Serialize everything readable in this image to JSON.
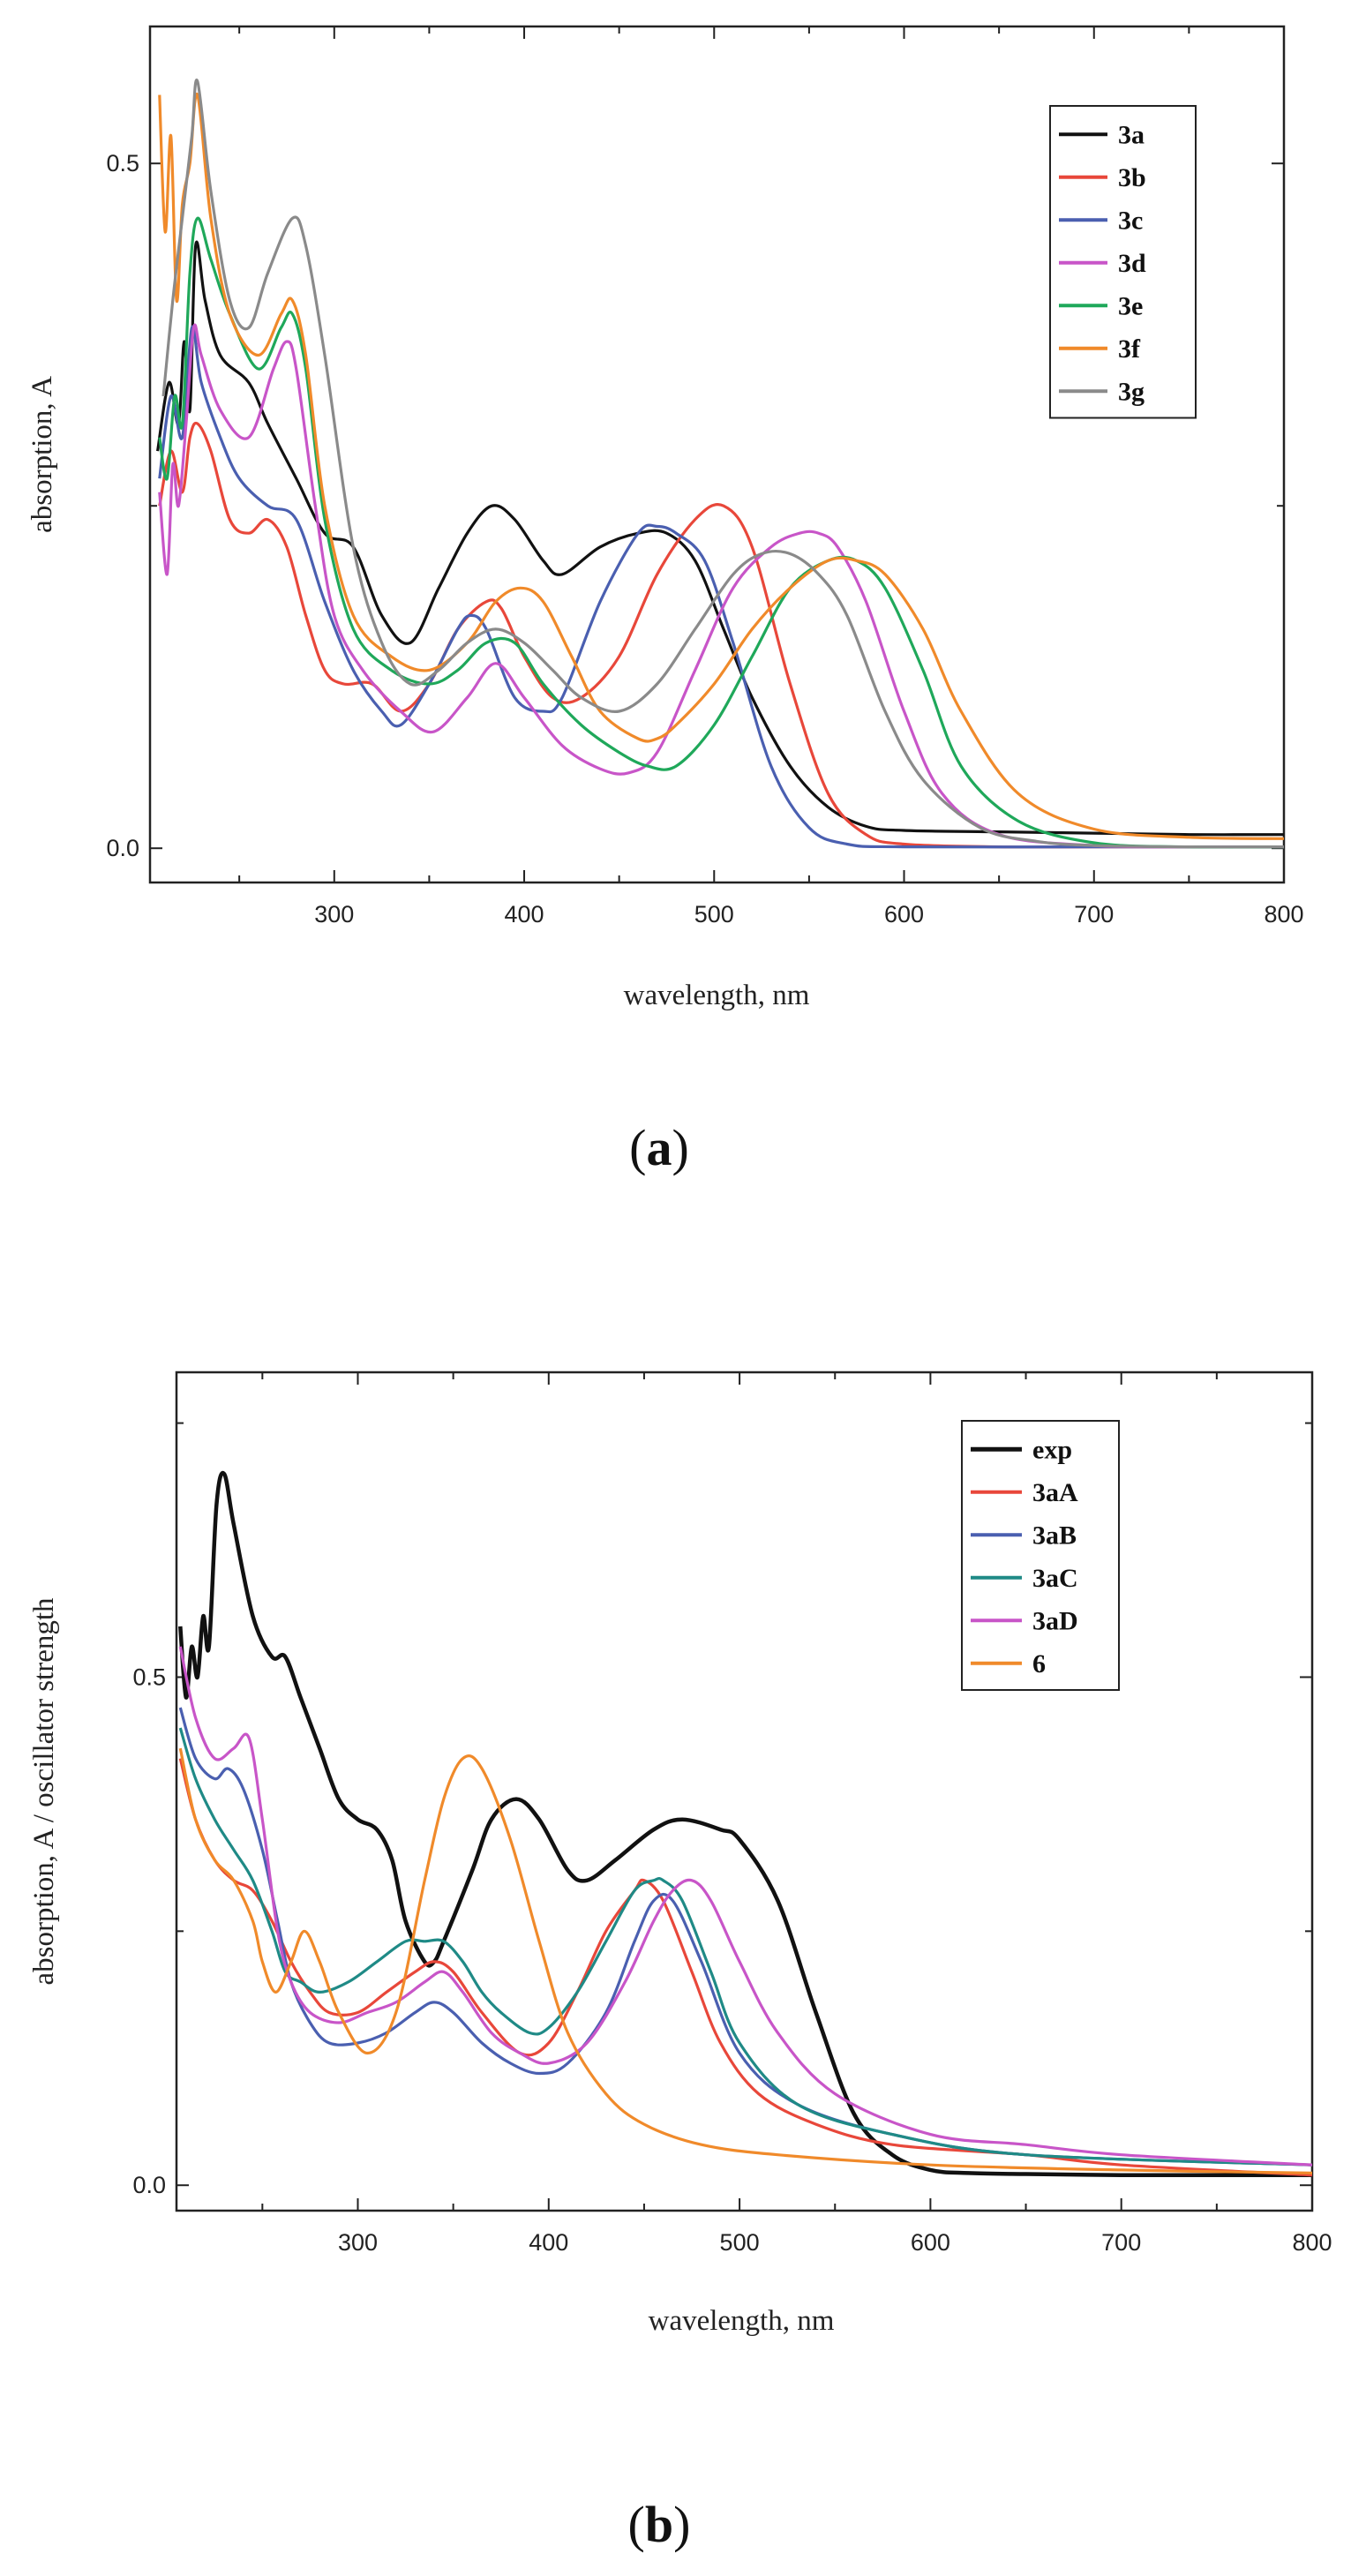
{
  "figure": {
    "panels": [
      {
        "caption_open": "(",
        "caption_letter": "a",
        "caption_close": ")"
      },
      {
        "caption_open": "(",
        "caption_letter": "b",
        "caption_close": ")"
      }
    ]
  },
  "chart_data": [
    {
      "type": "line",
      "title": "",
      "xlabel": "wavelength, nm",
      "ylabel": "absorption, A",
      "xlim": [
        203,
        800
      ],
      "ylim": [
        -0.025,
        0.6
      ],
      "xticks": [
        300,
        400,
        500,
        600,
        700,
        800
      ],
      "xtick_labels": [
        "300",
        "400",
        "500",
        "600",
        "700",
        "800"
      ],
      "yticks": [
        0.0,
        0.5
      ],
      "ytick_labels": [
        "0.0",
        "0.5"
      ],
      "legend_position": "top-right",
      "series": [
        {
          "name": "3a",
          "color": "#111111",
          "x": [
            207,
            213,
            218,
            221,
            224,
            227,
            232,
            240,
            255,
            265,
            280,
            295,
            310,
            325,
            340,
            355,
            370,
            383,
            395,
            410,
            420,
            440,
            460,
            475,
            490,
            505,
            520,
            540,
            560,
            580,
            600,
            650,
            700,
            750,
            800
          ],
          "y": [
            0.29,
            0.34,
            0.31,
            0.37,
            0.32,
            0.44,
            0.4,
            0.36,
            0.34,
            0.31,
            0.27,
            0.23,
            0.22,
            0.17,
            0.15,
            0.19,
            0.23,
            0.25,
            0.24,
            0.21,
            0.2,
            0.22,
            0.23,
            0.23,
            0.21,
            0.16,
            0.11,
            0.06,
            0.03,
            0.016,
            0.013,
            0.012,
            0.011,
            0.01,
            0.01
          ]
        },
        {
          "name": "3b",
          "color": "#e8473a",
          "x": [
            208,
            214,
            220,
            224,
            228,
            235,
            245,
            255,
            265,
            275,
            285,
            295,
            305,
            320,
            335,
            350,
            365,
            380,
            388,
            400,
            415,
            430,
            450,
            470,
            490,
            505,
            520,
            540,
            560,
            580,
            600,
            650,
            700,
            800
          ],
          "y": [
            0.25,
            0.29,
            0.26,
            0.3,
            0.31,
            0.29,
            0.24,
            0.23,
            0.24,
            0.22,
            0.17,
            0.13,
            0.12,
            0.12,
            0.1,
            0.12,
            0.16,
            0.18,
            0.175,
            0.14,
            0.11,
            0.11,
            0.14,
            0.2,
            0.24,
            0.25,
            0.22,
            0.12,
            0.04,
            0.01,
            0.003,
            0.001,
            0.001,
            0.001
          ]
        },
        {
          "name": "3c",
          "color": "#4a5fb0",
          "x": [
            208,
            214,
            220,
            225,
            230,
            240,
            250,
            265,
            280,
            295,
            310,
            325,
            335,
            350,
            365,
            372,
            380,
            395,
            410,
            420,
            440,
            460,
            470,
            480,
            495,
            510,
            530,
            550,
            570,
            600,
            700,
            800
          ],
          "y": [
            0.27,
            0.33,
            0.3,
            0.38,
            0.34,
            0.3,
            0.27,
            0.25,
            0.24,
            0.18,
            0.13,
            0.1,
            0.09,
            0.12,
            0.16,
            0.17,
            0.16,
            0.11,
            0.1,
            0.11,
            0.18,
            0.23,
            0.235,
            0.23,
            0.21,
            0.15,
            0.06,
            0.015,
            0.003,
            0.001,
            0.001,
            0.001
          ]
        },
        {
          "name": "3d",
          "color": "#c855c8",
          "x": [
            208,
            212,
            215,
            218,
            222,
            226,
            230,
            240,
            255,
            268,
            275,
            280,
            290,
            300,
            315,
            335,
            352,
            370,
            385,
            400,
            420,
            440,
            455,
            470,
            490,
            510,
            530,
            545,
            555,
            565,
            580,
            600,
            620,
            650,
            700,
            750,
            800
          ],
          "y": [
            0.26,
            0.2,
            0.28,
            0.25,
            0.31,
            0.38,
            0.36,
            0.32,
            0.3,
            0.35,
            0.37,
            0.35,
            0.25,
            0.17,
            0.13,
            0.1,
            0.085,
            0.11,
            0.135,
            0.11,
            0.075,
            0.058,
            0.055,
            0.07,
            0.13,
            0.19,
            0.22,
            0.23,
            0.23,
            0.22,
            0.18,
            0.1,
            0.04,
            0.01,
            0.002,
            0.001,
            0.001
          ]
        },
        {
          "name": "3e",
          "color": "#1fa85a",
          "x": [
            208,
            212,
            216,
            220,
            224,
            228,
            235,
            245,
            260,
            272,
            278,
            285,
            295,
            310,
            330,
            350,
            365,
            380,
            395,
            410,
            430,
            450,
            465,
            480,
            500,
            520,
            540,
            560,
            575,
            590,
            610,
            630,
            660,
            700,
            750,
            800
          ],
          "y": [
            0.3,
            0.27,
            0.33,
            0.31,
            0.42,
            0.46,
            0.43,
            0.39,
            0.35,
            0.38,
            0.39,
            0.35,
            0.24,
            0.16,
            0.13,
            0.12,
            0.13,
            0.15,
            0.15,
            0.12,
            0.09,
            0.07,
            0.06,
            0.06,
            0.09,
            0.14,
            0.19,
            0.21,
            0.21,
            0.19,
            0.13,
            0.06,
            0.02,
            0.004,
            0.001,
            0.001
          ]
        },
        {
          "name": "3f",
          "color": "#f08a2a",
          "x": [
            208,
            211,
            214,
            217,
            220,
            224,
            228,
            235,
            245,
            260,
            272,
            278,
            285,
            295,
            310,
            330,
            350,
            370,
            385,
            398,
            410,
            425,
            440,
            460,
            470,
            480,
            500,
            520,
            540,
            560,
            575,
            590,
            610,
            630,
            660,
            700,
            750,
            800
          ],
          "y": [
            0.55,
            0.45,
            0.52,
            0.4,
            0.47,
            0.5,
            0.55,
            0.46,
            0.39,
            0.36,
            0.39,
            0.4,
            0.36,
            0.25,
            0.17,
            0.14,
            0.13,
            0.15,
            0.18,
            0.19,
            0.18,
            0.14,
            0.1,
            0.08,
            0.08,
            0.09,
            0.12,
            0.16,
            0.19,
            0.21,
            0.21,
            0.2,
            0.16,
            0.1,
            0.04,
            0.014,
            0.008,
            0.007
          ]
        },
        {
          "name": "3g",
          "color": "#8a8a8a",
          "x": [
            210,
            215,
            220,
            225,
            228,
            235,
            245,
            255,
            265,
            278,
            285,
            295,
            310,
            325,
            340,
            355,
            370,
            385,
            400,
            415,
            430,
            450,
            470,
            490,
            510,
            525,
            540,
            555,
            570,
            590,
            610,
            640,
            670,
            700,
            750,
            800
          ],
          "y": [
            0.33,
            0.4,
            0.46,
            0.52,
            0.56,
            0.48,
            0.4,
            0.38,
            0.42,
            0.46,
            0.44,
            0.36,
            0.22,
            0.15,
            0.12,
            0.13,
            0.15,
            0.16,
            0.15,
            0.13,
            0.11,
            0.1,
            0.12,
            0.16,
            0.2,
            0.215,
            0.215,
            0.2,
            0.17,
            0.1,
            0.05,
            0.015,
            0.005,
            0.002,
            0.001,
            0.001
          ]
        }
      ]
    },
    {
      "type": "line",
      "title": "",
      "xlabel": "wavelength, nm",
      "ylabel": "absorption, A / oscillator strength",
      "xlim": [
        205,
        800
      ],
      "ylim": [
        -0.025,
        0.8
      ],
      "xticks": [
        300,
        400,
        500,
        600,
        700,
        800
      ],
      "xtick_labels": [
        "300",
        "400",
        "500",
        "600",
        "700",
        "800"
      ],
      "yticks": [
        0.0,
        0.5
      ],
      "ytick_labels": [
        "0.0",
        "0.5"
      ],
      "legend_position": "top-right",
      "series": [
        {
          "name": "exp",
          "color": "#111111",
          "x": [
            207,
            210,
            213,
            216,
            219,
            222,
            226,
            230,
            235,
            245,
            255,
            262,
            270,
            280,
            290,
            300,
            310,
            318,
            325,
            335,
            340,
            345,
            360,
            370,
            383,
            395,
            410,
            420,
            435,
            455,
            470,
            490,
            500,
            520,
            540,
            560,
            580,
            600,
            620,
            650,
            700,
            750,
            800
          ],
          "y": [
            0.55,
            0.48,
            0.53,
            0.5,
            0.56,
            0.53,
            0.67,
            0.7,
            0.65,
            0.56,
            0.52,
            0.52,
            0.48,
            0.43,
            0.38,
            0.36,
            0.35,
            0.32,
            0.26,
            0.22,
            0.22,
            0.24,
            0.31,
            0.36,
            0.38,
            0.36,
            0.31,
            0.3,
            0.32,
            0.35,
            0.36,
            0.35,
            0.34,
            0.28,
            0.17,
            0.07,
            0.03,
            0.015,
            0.012,
            0.011,
            0.01,
            0.01,
            0.01
          ]
        },
        {
          "name": "3aA",
          "color": "#e8473a",
          "x": [
            207,
            215,
            225,
            235,
            245,
            255,
            265,
            275,
            285,
            300,
            315,
            330,
            340,
            350,
            365,
            385,
            400,
            415,
            430,
            445,
            450,
            460,
            475,
            490,
            510,
            540,
            580,
            650,
            700,
            800
          ],
          "y": [
            0.42,
            0.36,
            0.32,
            0.3,
            0.29,
            0.26,
            0.22,
            0.19,
            0.17,
            0.17,
            0.19,
            0.21,
            0.22,
            0.21,
            0.17,
            0.13,
            0.14,
            0.19,
            0.25,
            0.29,
            0.3,
            0.28,
            0.21,
            0.14,
            0.09,
            0.06,
            0.04,
            0.03,
            0.02,
            0.01
          ]
        },
        {
          "name": "3aB",
          "color": "#4a5fb0",
          "x": [
            207,
            215,
            225,
            232,
            240,
            250,
            258,
            265,
            275,
            285,
            300,
            315,
            330,
            340,
            350,
            365,
            380,
            395,
            410,
            430,
            445,
            455,
            465,
            480,
            500,
            530,
            580,
            650,
            800
          ],
          "y": [
            0.47,
            0.42,
            0.4,
            0.41,
            0.39,
            0.33,
            0.26,
            0.2,
            0.16,
            0.14,
            0.14,
            0.15,
            0.17,
            0.18,
            0.17,
            0.14,
            0.12,
            0.11,
            0.12,
            0.17,
            0.24,
            0.28,
            0.28,
            0.22,
            0.13,
            0.08,
            0.05,
            0.03,
            0.02
          ]
        },
        {
          "name": "3aC",
          "color": "#1f8a86",
          "x": [
            207,
            215,
            225,
            235,
            245,
            255,
            262,
            270,
            280,
            295,
            310,
            325,
            335,
            345,
            355,
            365,
            375,
            390,
            400,
            415,
            430,
            445,
            455,
            460,
            470,
            485,
            500,
            530,
            580,
            650,
            800
          ],
          "y": [
            0.45,
            0.4,
            0.36,
            0.33,
            0.3,
            0.25,
            0.21,
            0.2,
            0.19,
            0.2,
            0.22,
            0.24,
            0.24,
            0.24,
            0.22,
            0.19,
            0.17,
            0.15,
            0.155,
            0.19,
            0.24,
            0.29,
            0.3,
            0.3,
            0.28,
            0.21,
            0.14,
            0.08,
            0.05,
            0.03,
            0.02
          ]
        },
        {
          "name": "3aD",
          "color": "#c855c8",
          "x": [
            207,
            215,
            225,
            235,
            243,
            250,
            258,
            265,
            275,
            290,
            305,
            320,
            335,
            345,
            355,
            370,
            385,
            400,
            420,
            440,
            455,
            465,
            475,
            485,
            500,
            520,
            550,
            600,
            650,
            700,
            800
          ],
          "y": [
            0.53,
            0.46,
            0.42,
            0.43,
            0.44,
            0.36,
            0.25,
            0.2,
            0.17,
            0.16,
            0.17,
            0.18,
            0.2,
            0.21,
            0.19,
            0.15,
            0.13,
            0.12,
            0.14,
            0.2,
            0.26,
            0.29,
            0.3,
            0.28,
            0.22,
            0.15,
            0.09,
            0.05,
            0.04,
            0.03,
            0.02
          ]
        },
        {
          "name": "6",
          "color": "#f08a2a",
          "x": [
            207,
            215,
            225,
            235,
            245,
            250,
            257,
            265,
            272,
            280,
            290,
            305,
            320,
            335,
            345,
            355,
            365,
            380,
            395,
            410,
            430,
            450,
            480,
            520,
            600,
            700,
            800
          ],
          "y": [
            0.43,
            0.36,
            0.32,
            0.3,
            0.26,
            0.22,
            0.19,
            0.22,
            0.25,
            0.22,
            0.17,
            0.13,
            0.17,
            0.3,
            0.38,
            0.42,
            0.41,
            0.34,
            0.24,
            0.15,
            0.09,
            0.06,
            0.04,
            0.03,
            0.02,
            0.015,
            0.012
          ]
        }
      ]
    }
  ]
}
